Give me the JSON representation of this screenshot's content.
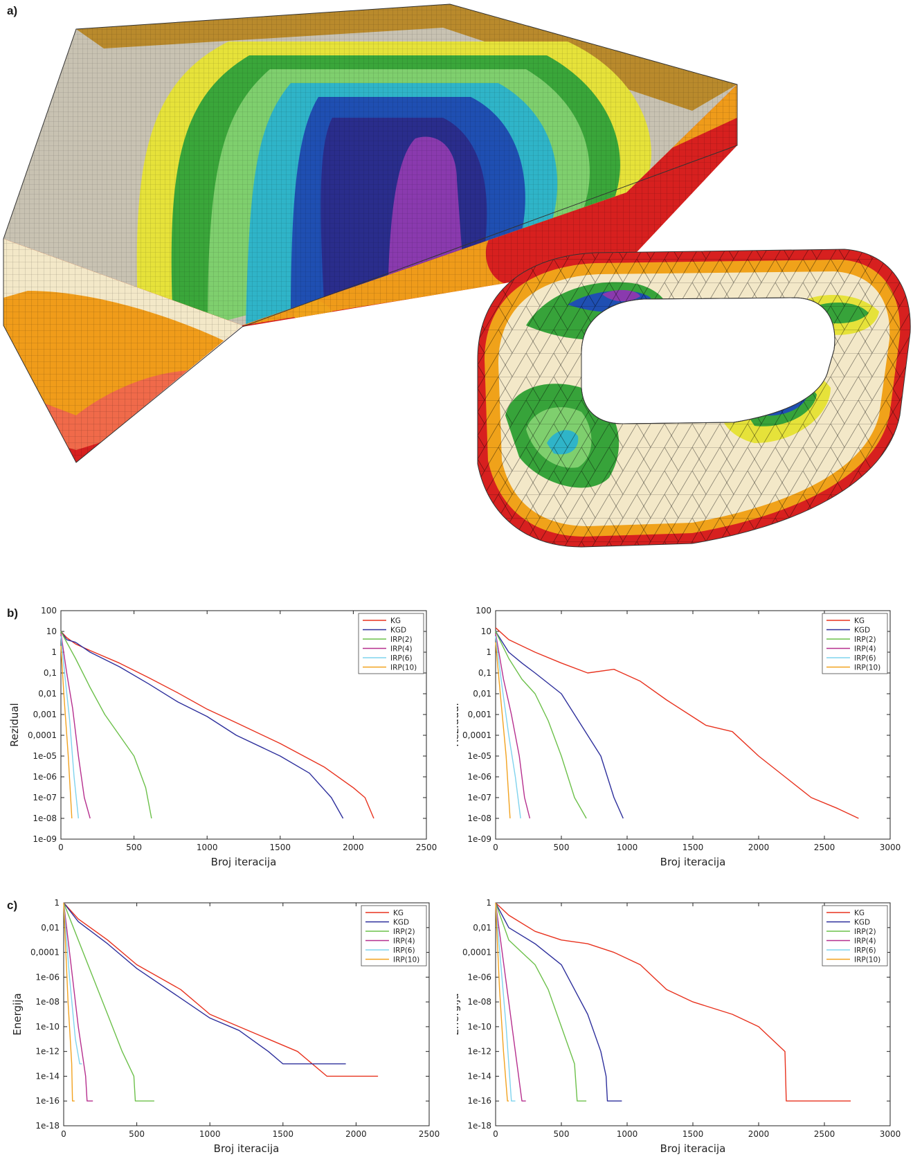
{
  "figure": {
    "labels": {
      "a": "a)",
      "b": "b)",
      "c": "c)"
    }
  },
  "series_colors": {
    "KG": "#e8321e",
    "KGD": "#2d2f9c",
    "IRP(2)": "#6cc04a",
    "IRP(4)": "#b62f8e",
    "IRP(6)": "#7fd3ee",
    "IRP(10)": "#f2a21f"
  },
  "mesh_colors": [
    "#d7201f",
    "#f08a1a",
    "#f2c31b",
    "#f3e8c8",
    "#f7f03a",
    "#38a436",
    "#7fc96a",
    "#2bb1c9",
    "#1f4fb2",
    "#2a2a8c",
    "#8a3aae"
  ],
  "chart_data": [
    {
      "id": "b-left",
      "type": "line",
      "title": "",
      "xlabel": "Broj iteracija",
      "ylabel": "Rezidual",
      "yscale": "log",
      "xlim": [
        0,
        2500
      ],
      "xticks": [
        0,
        500,
        1000,
        1500,
        2000,
        2500
      ],
      "ylim_exp": [
        -9,
        2
      ],
      "yticklabels": [
        "1e-09",
        "1e-08",
        "1e-07",
        "1e-06",
        "1e-05",
        "0,0001",
        "0,001",
        "0,01",
        "0,1",
        "1",
        "10",
        "100"
      ],
      "legend_position": "top-right",
      "series": [
        {
          "name": "KG",
          "x": [
            0,
            40,
            100,
            200,
            400,
            600,
            800,
            1000,
            1200,
            1500,
            1800,
            2000,
            2080,
            2140
          ],
          "y": [
            10,
            5,
            2.5,
            1.2,
            0.3,
            0.06,
            0.011,
            0.0018,
            0.0004,
            4e-05,
            3e-06,
            3e-07,
            1e-07,
            1e-08
          ]
        },
        {
          "name": "KGD",
          "x": [
            0,
            40,
            100,
            200,
            400,
            600,
            800,
            1000,
            1200,
            1500,
            1700,
            1850,
            1930
          ],
          "y": [
            10,
            4,
            3,
            1,
            0.2,
            0.03,
            0.004,
            0.0008,
            0.0001,
            1e-05,
            1.5e-06,
            1e-07,
            1e-08
          ]
        },
        {
          "name": "IRP(2)",
          "x": [
            0,
            30,
            100,
            200,
            300,
            400,
            500,
            580,
            620
          ],
          "y": [
            10,
            4,
            0.5,
            0.02,
            0.001,
            0.0001,
            1e-05,
            3e-07,
            1e-08
          ]
        },
        {
          "name": "IRP(4)",
          "x": [
            0,
            40,
            80,
            120,
            160,
            200
          ],
          "y": [
            8,
            0.1,
            0.002,
            1e-05,
            1e-07,
            1e-08
          ]
        },
        {
          "name": "IRP(6)",
          "x": [
            0,
            30,
            60,
            90,
            120
          ],
          "y": [
            6,
            0.05,
            0.0005,
            1e-06,
            1e-08
          ]
        },
        {
          "name": "IRP(10)",
          "x": [
            0,
            20,
            50,
            75
          ],
          "y": [
            2,
            0.01,
            1e-05,
            1e-08
          ]
        }
      ]
    },
    {
      "id": "b-right",
      "type": "line",
      "title": "",
      "xlabel": "Broj iteracija",
      "ylabel": "Rezidual",
      "yscale": "log",
      "xlim": [
        0,
        3000
      ],
      "xticks": [
        0,
        500,
        1000,
        1500,
        2000,
        2500,
        3000
      ],
      "ylim_exp": [
        -9,
        2
      ],
      "yticklabels": [
        "1e-09",
        "1e-08",
        "1e-07",
        "1e-06",
        "1e-05",
        "0,0001",
        "0,001",
        "0,01",
        "0,1",
        "1",
        "10",
        "100"
      ],
      "legend_position": "top-right",
      "series": [
        {
          "name": "KG",
          "x": [
            0,
            100,
            300,
            500,
            700,
            900,
            1100,
            1300,
            1600,
            1800,
            2000,
            2200,
            2400,
            2600,
            2760
          ],
          "y": [
            15,
            4,
            1,
            0.3,
            0.1,
            0.15,
            0.04,
            0.005,
            0.0003,
            0.00015,
            1e-05,
            1e-06,
            1e-07,
            3e-08,
            1e-08
          ]
        },
        {
          "name": "KGD",
          "x": [
            0,
            100,
            200,
            300,
            500,
            600,
            700,
            800,
            900,
            970
          ],
          "y": [
            10,
            1,
            0.3,
            0.1,
            0.01,
            0.001,
            0.0001,
            1e-05,
            1e-07,
            1e-08
          ]
        },
        {
          "name": "IRP(2)",
          "x": [
            0,
            100,
            200,
            300,
            400,
            500,
            600,
            690
          ],
          "y": [
            10,
            0.5,
            0.05,
            0.01,
            0.0005,
            1e-05,
            1e-07,
            1e-08
          ]
        },
        {
          "name": "IRP(4)",
          "x": [
            0,
            60,
            120,
            180,
            220,
            260
          ],
          "y": [
            8,
            0.05,
            0.001,
            1e-05,
            1e-07,
            1e-08
          ]
        },
        {
          "name": "IRP(6)",
          "x": [
            0,
            50,
            100,
            150,
            190
          ],
          "y": [
            6,
            0.02,
            0.0001,
            1e-06,
            1e-08
          ]
        },
        {
          "name": "IRP(10)",
          "x": [
            0,
            40,
            80,
            110
          ],
          "y": [
            3,
            0.005,
            1e-05,
            1e-08
          ]
        }
      ]
    },
    {
      "id": "c-left",
      "type": "line",
      "title": "",
      "xlabel": "Broj iteracija",
      "ylabel": "Energija",
      "yscale": "log",
      "xlim": [
        0,
        2500
      ],
      "xticks": [
        0,
        500,
        1000,
        1500,
        2000,
        2500
      ],
      "ylim_exp": [
        -18,
        0
      ],
      "yticklabels": [
        "1e-18",
        "1e-16",
        "1e-14",
        "1e-12",
        "1e-10",
        "1e-08",
        "1e-06",
        "0,0001",
        "0,01",
        "1"
      ],
      "legend_position": "top-right",
      "series": [
        {
          "name": "KG",
          "x": [
            0,
            100,
            300,
            500,
            800,
            1000,
            1200,
            1400,
            1600,
            1800,
            2150
          ],
          "y": [
            1,
            0.05,
            0.001,
            1e-05,
            1e-07,
            1e-09,
            1e-10,
            1e-11,
            1e-12,
            1e-14,
            1e-14
          ]
        },
        {
          "name": "KGD",
          "x": [
            0,
            100,
            300,
            500,
            800,
            1000,
            1200,
            1400,
            1500,
            1930
          ],
          "y": [
            1,
            0.03,
            0.0005,
            5e-06,
            2e-08,
            5e-10,
            5e-11,
            1e-12,
            1e-13,
            1e-13
          ]
        },
        {
          "name": "IRP(2)",
          "x": [
            0,
            100,
            200,
            300,
            400,
            480,
            490,
            620
          ],
          "y": [
            1,
            0.001,
            1e-06,
            1e-09,
            1e-12,
            1e-14,
            1e-16,
            1e-16
          ]
        },
        {
          "name": "IRP(4)",
          "x": [
            0,
            50,
            100,
            150,
            160,
            200
          ],
          "y": [
            1,
            1e-05,
            1e-10,
            1e-14,
            1e-16,
            1e-16
          ]
        },
        {
          "name": "IRP(6)",
          "x": [
            0,
            40,
            80,
            110,
            125
          ],
          "y": [
            1,
            1e-06,
            1e-11,
            1e-13,
            1e-13
          ]
        },
        {
          "name": "IRP(10)",
          "x": [
            0,
            30,
            55,
            60,
            75
          ],
          "y": [
            1,
            1e-08,
            1e-13,
            1e-16,
            1e-16
          ]
        }
      ]
    },
    {
      "id": "c-right",
      "type": "line",
      "title": "",
      "xlabel": "Broj iteracija",
      "ylabel": "Energija",
      "yscale": "log",
      "xlim": [
        0,
        3000
      ],
      "xticks": [
        0,
        500,
        1000,
        1500,
        2000,
        2500,
        3000
      ],
      "ylim_exp": [
        -18,
        0
      ],
      "yticklabels": [
        "1e-18",
        "1e-16",
        "1e-14",
        "1e-12",
        "1e-10",
        "1e-08",
        "1e-06",
        "0,0001",
        "0,01",
        "1"
      ],
      "legend_position": "top-right",
      "series": [
        {
          "name": "KG",
          "x": [
            0,
            100,
            300,
            500,
            700,
            900,
            1100,
            1300,
            1500,
            1800,
            2000,
            2200,
            2210,
            2700
          ],
          "y": [
            1,
            0.1,
            0.005,
            0.001,
            0.0005,
            0.0001,
            1e-05,
            1e-07,
            1e-08,
            1e-09,
            1e-10,
            1e-12,
            1e-16,
            1e-16
          ]
        },
        {
          "name": "KGD",
          "x": [
            0,
            100,
            300,
            500,
            600,
            700,
            800,
            840,
            850,
            960
          ],
          "y": [
            1,
            0.01,
            0.0005,
            1e-05,
            1e-07,
            1e-09,
            1e-12,
            1e-14,
            1e-16,
            1e-16
          ]
        },
        {
          "name": "IRP(2)",
          "x": [
            0,
            100,
            200,
            300,
            400,
            500,
            600,
            620,
            690
          ],
          "y": [
            1,
            0.001,
            0.0001,
            1e-05,
            1e-07,
            1e-10,
            1e-13,
            1e-16,
            1e-16
          ]
        },
        {
          "name": "IRP(4)",
          "x": [
            0,
            50,
            100,
            150,
            200,
            230
          ],
          "y": [
            1,
            0.0001,
            1e-08,
            1e-12,
            1e-16,
            1e-16
          ]
        },
        {
          "name": "IRP(6)",
          "x": [
            0,
            40,
            80,
            120,
            150
          ],
          "y": [
            1,
            1e-05,
            1e-10,
            1e-16,
            1e-16
          ]
        },
        {
          "name": "IRP(10)",
          "x": [
            0,
            30,
            60,
            90,
            100
          ],
          "y": [
            1,
            1e-07,
            1e-12,
            1e-16,
            1e-16
          ]
        }
      ]
    }
  ]
}
